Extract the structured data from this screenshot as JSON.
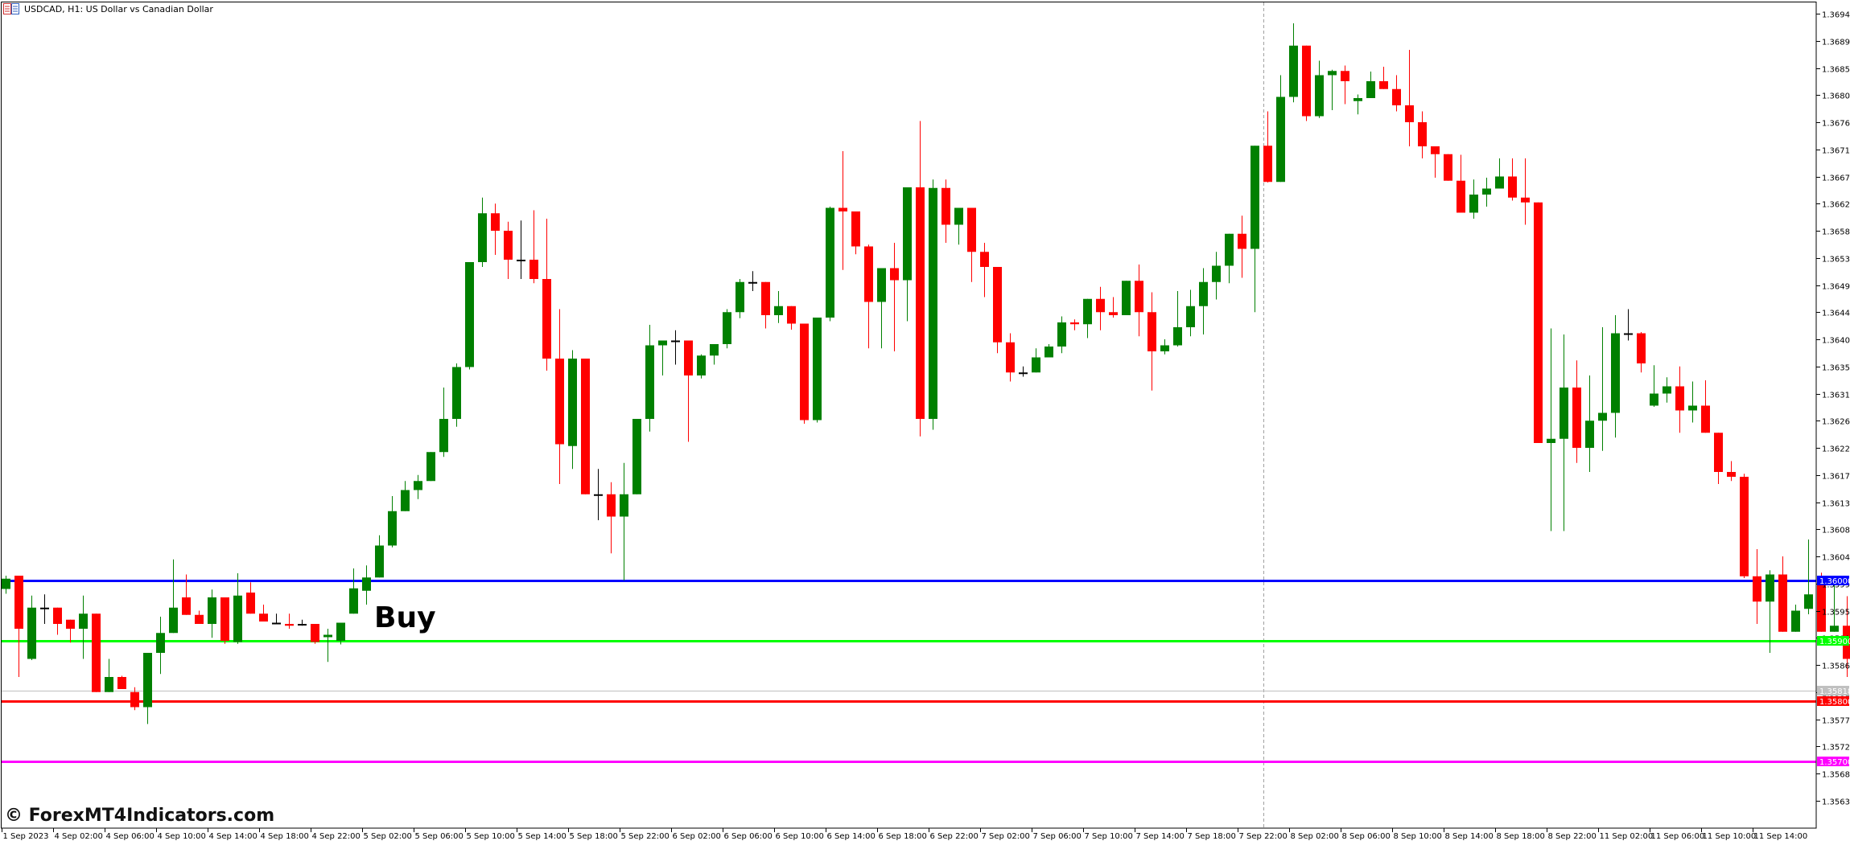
{
  "window": {
    "title": "USDCAD, H1:  US Dollar vs Canadian Dollar",
    "icon": "chart-window-icon"
  },
  "annotations": {
    "buy_label": "Buy",
    "watermark": "© ForexMT4Indicators.com"
  },
  "colors": {
    "bull": "#008000",
    "bear": "#ff0000",
    "doji": "#000000",
    "background": "#ffffff",
    "axis": "#000000",
    "blue_level": "#0000ff",
    "green_level": "#00ff00",
    "red_level": "#ff0000",
    "magenta_level": "#ff00ff",
    "bid_line": "#c0c0c0",
    "period_separator": "#a0a0a0"
  },
  "chart_data": {
    "type": "candlestick",
    "title": "USDCAD, H1:  US Dollar vs Canadian Dollar",
    "symbol": "USDCAD",
    "timeframe": "H1",
    "xlabel": "",
    "ylabel": "",
    "ylim": [
      1.35615,
      1.3696
    ],
    "grid": false,
    "y_ticks": [
      "1.36940",
      "1.36895",
      "1.36850",
      "1.36805",
      "1.36760",
      "1.36715",
      "1.36670",
      "1.36625",
      "1.36580",
      "1.36535",
      "1.36490",
      "1.36445",
      "1.36400",
      "1.36355",
      "1.36310",
      "1.36265",
      "1.36220",
      "1.36175",
      "1.36130",
      "1.36085",
      "1.36040",
      "1.35995",
      "1.35950",
      "1.35905",
      "1.35860",
      "1.35815",
      "1.35770",
      "1.35725",
      "1.35680",
      "1.35635"
    ],
    "x_ticks": [
      "1 Sep 2023",
      "4 Sep 02:00",
      "4 Sep 06:00",
      "4 Sep 10:00",
      "4 Sep 14:00",
      "4 Sep 18:00",
      "4 Sep 22:00",
      "5 Sep 02:00",
      "5 Sep 06:00",
      "5 Sep 10:00",
      "5 Sep 14:00",
      "5 Sep 18:00",
      "5 Sep 22:00",
      "6 Sep 02:00",
      "6 Sep 06:00",
      "6 Sep 10:00",
      "6 Sep 14:00",
      "6 Sep 18:00",
      "6 Sep 22:00",
      "7 Sep 02:00",
      "7 Sep 06:00",
      "7 Sep 10:00",
      "7 Sep 14:00",
      "7 Sep 18:00",
      "7 Sep 22:00",
      "8 Sep 02:00",
      "8 Sep 06:00",
      "8 Sep 10:00",
      "8 Sep 14:00",
      "8 Sep 18:00",
      "8 Sep 22:00",
      "11 Sep 02:00",
      "11 Sep 06:00",
      "11 Sep 10:00",
      "11 Sep 14:00"
    ],
    "horizontal_levels": [
      {
        "price": "1.36000",
        "color": "#0000ff",
        "label": "1.36000"
      },
      {
        "price": "1.35900",
        "color": "#00ff00",
        "label": "1.35900"
      },
      {
        "price": "1.35818",
        "color": "#c0c0c0",
        "label": "1.35818"
      },
      {
        "price": "1.35800",
        "color": "#ff0000",
        "label": "1.35800"
      },
      {
        "price": "1.35700",
        "color": "#ff00ff",
        "label": "1.35700"
      }
    ],
    "annotations": [
      {
        "text": "Buy",
        "near_price": 1.3595
      }
    ],
    "candles": [
      [
        1.35986,
        1.36008,
        1.35978,
        1.36003
      ],
      [
        1.36008,
        1.36008,
        1.3584,
        1.3592
      ],
      [
        1.3587,
        1.35975,
        1.35868,
        1.35955
      ],
      [
        1.35955,
        1.35977,
        1.35928,
        1.35955
      ],
      [
        1.35955,
        1.35955,
        1.3591,
        1.35928
      ],
      [
        1.35935,
        1.35935,
        1.35897,
        1.3592
      ],
      [
        1.3592,
        1.35975,
        1.3587,
        1.35945
      ],
      [
        1.35945,
        1.35945,
        1.35815,
        1.35815
      ],
      [
        1.35815,
        1.3587,
        1.35828,
        1.3584
      ],
      [
        1.3584,
        1.35842,
        1.3582,
        1.3582
      ],
      [
        1.35815,
        1.35823,
        1.35785,
        1.3579
      ],
      [
        1.3579,
        1.3588,
        1.35762,
        1.3588
      ],
      [
        1.3588,
        1.3594,
        1.35845,
        1.35913
      ],
      [
        1.35913,
        1.36035,
        1.3592,
        1.35955
      ],
      [
        1.35972,
        1.3601,
        1.35955,
        1.35943
      ],
      [
        1.35943,
        1.3595,
        1.3593,
        1.35928
      ],
      [
        1.35928,
        1.35985,
        1.35905,
        1.35972
      ],
      [
        1.35972,
        1.35972,
        1.35895,
        1.359
      ],
      [
        1.35898,
        1.36012,
        1.35895,
        1.35975
      ],
      [
        1.3598,
        1.35997,
        1.35945,
        1.35945
      ],
      [
        1.35945,
        1.3596,
        1.35936,
        1.35932
      ],
      [
        1.3593,
        1.35945,
        1.3593,
        1.3593
      ],
      [
        1.35928,
        1.35945,
        1.3592,
        1.35925
      ],
      [
        1.35928,
        1.35935,
        1.35925,
        1.35928
      ],
      [
        1.35928,
        1.35928,
        1.35895,
        1.35898
      ],
      [
        1.35906,
        1.3592,
        1.35865,
        1.3591
      ],
      [
        1.359,
        1.3593,
        1.35894,
        1.3593
      ],
      [
        1.35945,
        1.3602,
        1.35945,
        1.35987
      ],
      [
        1.35983,
        1.36025,
        1.3596,
        1.36005
      ],
      [
        1.36005,
        1.36075,
        1.3601,
        1.36058
      ],
      [
        1.36058,
        1.3614,
        1.36055,
        1.36115
      ],
      [
        1.36115,
        1.36165,
        1.36125,
        1.3615
      ],
      [
        1.3615,
        1.36175,
        1.36135,
        1.36165
      ],
      [
        1.36165,
        1.36212,
        1.36165,
        1.36213
      ],
      [
        1.36213,
        1.3632,
        1.36205,
        1.36268
      ],
      [
        1.36268,
        1.3636,
        1.36255,
        1.36354
      ],
      [
        1.36354,
        1.36418,
        1.3635,
        1.36528
      ],
      [
        1.36528,
        1.36635,
        1.3652,
        1.36609
      ],
      [
        1.36609,
        1.36625,
        1.3654,
        1.3658
      ],
      [
        1.3658,
        1.36595,
        1.365,
        1.36532
      ],
      [
        1.36532,
        1.36597,
        1.365,
        1.36532
      ],
      [
        1.36532,
        1.36614,
        1.36493,
        1.365
      ],
      [
        1.365,
        1.366,
        1.36348,
        1.36368
      ],
      [
        1.36368,
        1.3645,
        1.3616,
        1.36226
      ],
      [
        1.36223,
        1.36382,
        1.36185,
        1.36368
      ],
      [
        1.36368,
        1.36368,
        1.36152,
        1.36143
      ],
      [
        1.36143,
        1.36185,
        1.361,
        1.36143
      ],
      [
        1.36143,
        1.36163,
        1.36045,
        1.36106
      ],
      [
        1.36106,
        1.36195,
        1.36,
        1.36143
      ],
      [
        1.36143,
        1.3626,
        1.3619,
        1.36268
      ],
      [
        1.36268,
        1.36424,
        1.36247,
        1.3639
      ],
      [
        1.3639,
        1.36397,
        1.3634,
        1.36398
      ],
      [
        1.36398,
        1.36415,
        1.36358,
        1.36398
      ],
      [
        1.36398,
        1.3639,
        1.3623,
        1.3634
      ],
      [
        1.3634,
        1.36375,
        1.36335,
        1.36373
      ],
      [
        1.36373,
        1.36383,
        1.36358,
        1.36392
      ],
      [
        1.36392,
        1.3645,
        1.36385,
        1.36445
      ],
      [
        1.36445,
        1.365,
        1.36435,
        1.36495
      ],
      [
        1.36495,
        1.36513,
        1.3648,
        1.36495
      ],
      [
        1.36495,
        1.36495,
        1.36418,
        1.3644
      ],
      [
        1.3644,
        1.3648,
        1.36427,
        1.36455
      ],
      [
        1.36455,
        1.36445,
        1.36416,
        1.36426
      ],
      [
        1.36426,
        1.36398,
        1.3626,
        1.36266
      ],
      [
        1.36266,
        1.36412,
        1.36262,
        1.36436
      ],
      [
        1.36436,
        1.3662,
        1.3643,
        1.36618
      ],
      [
        1.36618,
        1.36712,
        1.36515,
        1.36612
      ],
      [
        1.36612,
        1.3657,
        1.36541,
        1.36554
      ],
      [
        1.36554,
        1.36557,
        1.36385,
        1.36462
      ],
      [
        1.36462,
        1.36507,
        1.36385,
        1.36518
      ],
      [
        1.36518,
        1.3656,
        1.3638,
        1.36498
      ],
      [
        1.36498,
        1.3659,
        1.3643,
        1.36652
      ],
      [
        1.36652,
        1.36762,
        1.36239,
        1.36268
      ],
      [
        1.36268,
        1.36665,
        1.3625,
        1.36651
      ],
      [
        1.36651,
        1.36665,
        1.3656,
        1.3659
      ],
      [
        1.3659,
        1.36612,
        1.36557,
        1.36618
      ],
      [
        1.36618,
        1.36605,
        1.36495,
        1.36545
      ],
      [
        1.36545,
        1.3656,
        1.3647,
        1.3652
      ],
      [
        1.3652,
        1.3652,
        1.36377,
        1.36395
      ],
      [
        1.36395,
        1.3641,
        1.3633,
        1.36345
      ],
      [
        1.36345,
        1.36355,
        1.36338,
        1.36345
      ],
      [
        1.36345,
        1.36385,
        1.3635,
        1.3637
      ],
      [
        1.3637,
        1.36392,
        1.36375,
        1.36388
      ],
      [
        1.36388,
        1.36438,
        1.36377,
        1.36428
      ],
      [
        1.36428,
        1.36433,
        1.36415,
        1.36425
      ],
      [
        1.36425,
        1.36467,
        1.36402,
        1.36467
      ],
      [
        1.36467,
        1.36487,
        1.36415,
        1.36445
      ],
      [
        1.36445,
        1.3647,
        1.36436,
        1.3644
      ],
      [
        1.3644,
        1.36482,
        1.36468,
        1.36497
      ],
      [
        1.36497,
        1.36524,
        1.36405,
        1.36445
      ],
      [
        1.36445,
        1.36478,
        1.36315,
        1.3638
      ],
      [
        1.3638,
        1.364,
        1.36375,
        1.3639
      ],
      [
        1.3639,
        1.3648,
        1.36388,
        1.3642
      ],
      [
        1.3642,
        1.36482,
        1.36405,
        1.36455
      ],
      [
        1.36455,
        1.36518,
        1.36408,
        1.36495
      ],
      [
        1.36495,
        1.36545,
        1.36466,
        1.36522
      ],
      [
        1.36522,
        1.36554,
        1.36493,
        1.36575
      ],
      [
        1.36575,
        1.36605,
        1.36502,
        1.3655
      ],
      [
        1.3655,
        1.36627,
        1.36445,
        1.36721
      ],
      [
        1.36721,
        1.36778,
        1.3666,
        1.36661
      ],
      [
        1.36661,
        1.36838,
        1.3667,
        1.36802
      ],
      [
        1.36802,
        1.36924,
        1.36793,
        1.36887
      ],
      [
        1.36887,
        1.36878,
        1.36762,
        1.3677
      ],
      [
        1.3677,
        1.36862,
        1.36767,
        1.36838
      ],
      [
        1.36838,
        1.36847,
        1.3678,
        1.36845
      ],
      [
        1.36845,
        1.36854,
        1.3679,
        1.36828
      ],
      [
        1.36795,
        1.36806,
        1.36773,
        1.368
      ],
      [
        1.368,
        1.36844,
        1.36806,
        1.36828
      ],
      [
        1.36828,
        1.36852,
        1.3682,
        1.36815
      ],
      [
        1.36815,
        1.36838,
        1.36778,
        1.36788
      ],
      [
        1.36788,
        1.3688,
        1.3672,
        1.3676
      ],
      [
        1.3676,
        1.36778,
        1.367,
        1.3672
      ],
      [
        1.3672,
        1.36705,
        1.36668,
        1.36707
      ],
      [
        1.36707,
        1.367,
        1.36665,
        1.36663
      ],
      [
        1.36663,
        1.36706,
        1.3661,
        1.3661
      ],
      [
        1.3661,
        1.36665,
        1.366,
        1.3664
      ],
      [
        1.3664,
        1.36668,
        1.3662,
        1.3665
      ],
      [
        1.3665,
        1.367,
        1.3665,
        1.3667
      ],
      [
        1.3667,
        1.367,
        1.3663,
        1.36635
      ],
      [
        1.36635,
        1.367,
        1.3659,
        1.36627
      ],
      [
        1.36627,
        1.36625,
        1.3624,
        1.36228
      ],
      [
        1.36228,
        1.36418,
        1.36082,
        1.36235
      ],
      [
        1.36235,
        1.36408,
        1.36082,
        1.3632
      ],
      [
        1.3632,
        1.36365,
        1.36195,
        1.3622
      ],
      [
        1.3622,
        1.3634,
        1.3618,
        1.36265
      ],
      [
        1.36265,
        1.3642,
        1.36215,
        1.36278
      ],
      [
        1.36278,
        1.3644,
        1.36237,
        1.3641
      ],
      [
        1.3641,
        1.3645,
        1.36398,
        1.3641
      ],
      [
        1.3641,
        1.36412,
        1.36345,
        1.3636
      ],
      [
        1.3629,
        1.36357,
        1.36288,
        1.3631
      ],
      [
        1.3631,
        1.36337,
        1.36295,
        1.36322
      ],
      [
        1.36322,
        1.36355,
        1.36245,
        1.36282
      ],
      [
        1.36282,
        1.3633,
        1.36262,
        1.3629
      ],
      [
        1.3629,
        1.36332,
        1.36252,
        1.36245
      ],
      [
        1.36245,
        1.36232,
        1.3616,
        1.3618
      ],
      [
        1.3618,
        1.36198,
        1.36165,
        1.36172
      ],
      [
        1.36172,
        1.36177,
        1.36004,
        1.36007
      ],
      [
        1.36007,
        1.36052,
        1.35928,
        1.35965
      ],
      [
        1.35965,
        1.36017,
        1.3588,
        1.3601
      ],
      [
        1.3601,
        1.3604,
        1.3592,
        1.35915
      ],
      [
        1.35915,
        1.3596,
        1.3593,
        1.3595
      ],
      [
        1.35953,
        1.36068,
        1.35944,
        1.35977
      ],
      [
        1.36,
        1.36013,
        1.35915,
        1.35915
      ],
      [
        1.35915,
        1.36004,
        1.35918,
        1.35925
      ],
      [
        1.35925,
        1.35974,
        1.3584,
        1.3587
      ],
      [
        1.3587,
        1.35884,
        1.35697,
        1.35713
      ],
      [
        1.35713,
        1.35976,
        1.35628,
        1.35955
      ],
      [
        1.35955,
        1.36004,
        1.35765,
        1.35817
      ]
    ]
  },
  "axis": {
    "price_labels": {
      "blue": "1.36000",
      "green": "1.35900",
      "gray": "1.35818",
      "red": "1.35800",
      "magenta": "1.35700"
    }
  }
}
